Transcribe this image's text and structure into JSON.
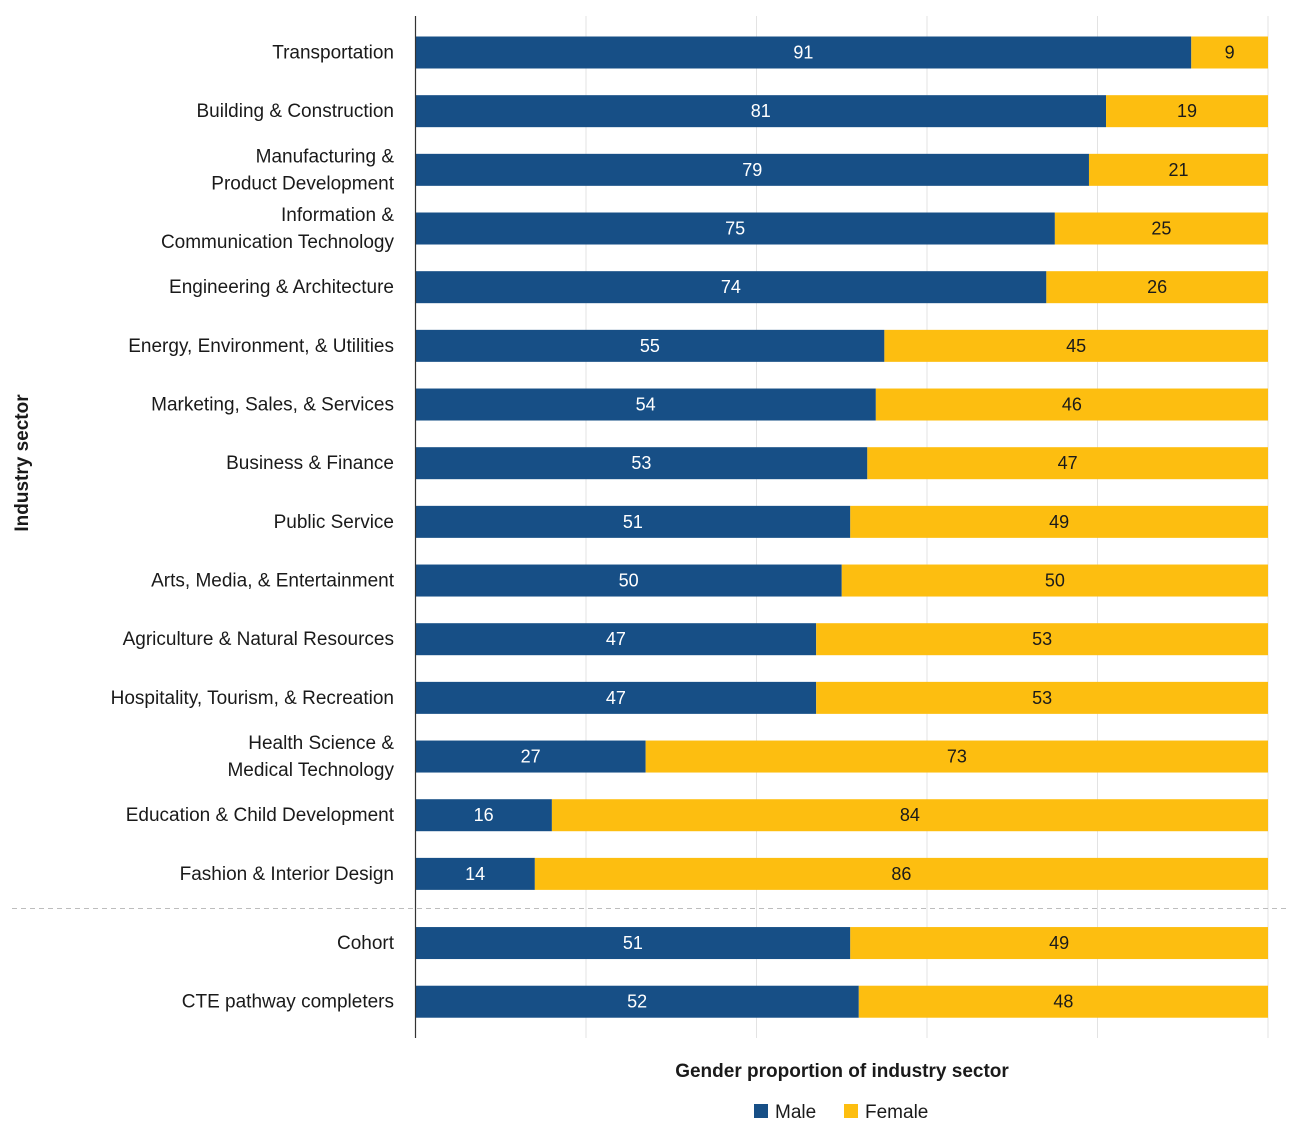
{
  "chart_data": {
    "type": "bar",
    "orientation": "horizontal",
    "stacked": true,
    "title": "",
    "xlabel": "Gender proportion of industry sector",
    "ylabel": "Industry sector",
    "xlim": [
      0,
      100
    ],
    "grid": true,
    "legend_position": "bottom",
    "categories": [
      [
        "Transportation"
      ],
      [
        "Building & Construction"
      ],
      [
        "Manufacturing &",
        "Product Development"
      ],
      [
        "Information &",
        "Communication Technology"
      ],
      [
        "Engineering & Architecture"
      ],
      [
        "Energy, Environment, & Utilities"
      ],
      [
        "Marketing, Sales, & Services"
      ],
      [
        "Business & Finance"
      ],
      [
        "Public Service"
      ],
      [
        "Arts, Media, & Entertainment"
      ],
      [
        "Agriculture & Natural Resources"
      ],
      [
        "Hospitality, Tourism, & Recreation"
      ],
      [
        "Health Science &",
        "Medical Technology"
      ],
      [
        "Education & Child Development"
      ],
      [
        "Fashion & Interior Design"
      ],
      [
        "Cohort"
      ],
      [
        "CTE pathway completers"
      ]
    ],
    "separator_after_index": 14,
    "series": [
      {
        "name": "Male",
        "color": "#174f86",
        "label_color": "#ffffff",
        "values": [
          91,
          81,
          79,
          75,
          74,
          55,
          54,
          53,
          51,
          50,
          47,
          47,
          27,
          16,
          14,
          51,
          52
        ]
      },
      {
        "name": "Female",
        "color": "#fdbe10",
        "label_color": "#1a1a1a",
        "values": [
          9,
          19,
          21,
          25,
          26,
          45,
          46,
          47,
          49,
          50,
          53,
          53,
          73,
          84,
          86,
          49,
          48
        ]
      }
    ]
  }
}
